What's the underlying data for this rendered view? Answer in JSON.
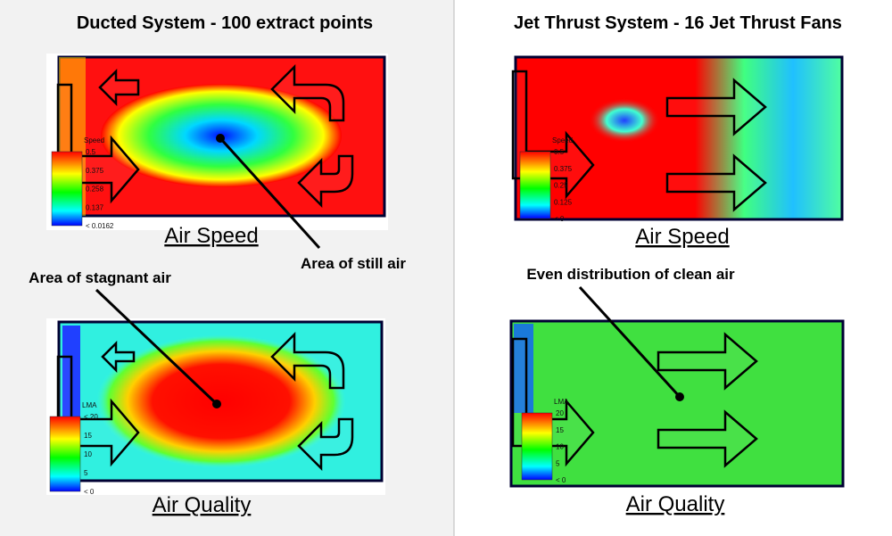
{
  "left": {
    "title": "Ducted System - 100 extract points",
    "speed": {
      "caption": "Air Speed",
      "legend_title": "Speed",
      "legend_labels": [
        "0.5",
        "0.375",
        "0.258",
        "0.137",
        "< 0.0162"
      ],
      "annotation": "Area of still air"
    },
    "quality": {
      "caption": "Air Quality",
      "legend_title": "LMA",
      "legend_labels": [
        "< 20",
        "15",
        "10",
        "5",
        "< 0"
      ],
      "annotation": "Area of stagnant air"
    }
  },
  "right": {
    "title": "Jet Thrust System - 16 Jet Thrust Fans",
    "speed": {
      "caption": "Air Speed",
      "legend_title": "Speed",
      "legend_labels": [
        "0.5",
        "0.375",
        "0.25",
        "0.125",
        "< 0"
      ]
    },
    "quality": {
      "caption": "Air Quality",
      "legend_title": "LMA",
      "legend_labels": [
        "20",
        "15",
        "10",
        "5",
        "< 0"
      ],
      "annotation": "Even distribution of clean air"
    }
  }
}
